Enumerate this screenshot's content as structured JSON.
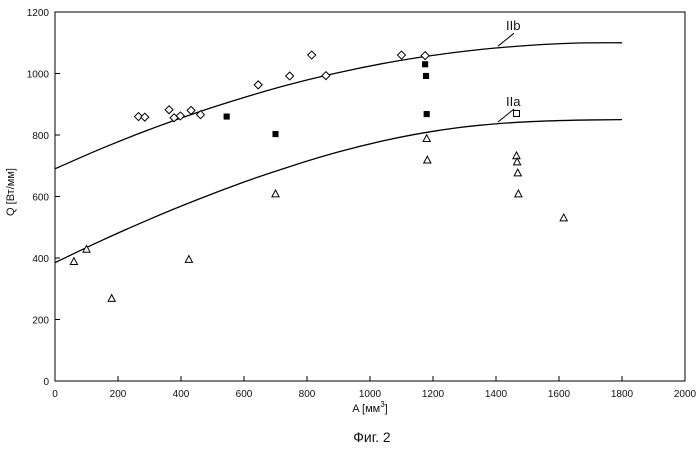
{
  "chart_data": {
    "type": "scatter",
    "title": "",
    "caption": "Фиг. 2",
    "xlabel": "A [мм",
    "xlabel_sup": "3",
    "xlabel_close": "]",
    "ylabel": "Q [Вт/мм]",
    "xlim": [
      0,
      2000
    ],
    "ylim": [
      0,
      1200
    ],
    "x_ticks": [
      0,
      200,
      400,
      600,
      800,
      1000,
      1200,
      1400,
      1600,
      1800,
      2000
    ],
    "y_ticks": [
      0,
      200,
      400,
      600,
      800,
      1000,
      1200
    ],
    "grid": false,
    "curves": [
      {
        "name": "IIb",
        "x": [
          0,
          150,
          300,
          450,
          600,
          750,
          900,
          1050,
          1200,
          1350,
          1500,
          1650,
          1800
        ],
        "y": [
          690,
          757,
          818,
          873,
          922,
          966,
          1003,
          1034,
          1059,
          1078,
          1091,
          1099,
          1100
        ]
      },
      {
        "name": "IIa",
        "x": [
          0,
          150,
          300,
          450,
          600,
          750,
          900,
          1050,
          1200,
          1350,
          1500,
          1650,
          1800
        ],
        "y": [
          385,
          458,
          526,
          589,
          647,
          699,
          745,
          783,
          812,
          832,
          843,
          848,
          850
        ]
      }
    ],
    "series": [
      {
        "marker": "diamond",
        "x": [
          265,
          285,
          362,
          378,
          398,
          432,
          462,
          645,
          745,
          815,
          860,
          1100,
          1175
        ],
        "y": [
          860,
          858,
          882,
          856,
          862,
          880,
          866,
          963,
          992,
          1060,
          993,
          1060,
          1058
        ]
      },
      {
        "marker": "square-filled",
        "x": [
          545,
          700,
          1175,
          1178,
          1180
        ],
        "y": [
          860,
          803,
          1030,
          992,
          868
        ]
      },
      {
        "marker": "square-open",
        "x": [
          1465
        ],
        "y": [
          870
        ]
      },
      {
        "marker": "triangle",
        "x": [
          60,
          100,
          180,
          425,
          700,
          1180,
          1182,
          1465,
          1467,
          1469,
          1471,
          1615
        ],
        "y": [
          388,
          428,
          268,
          395,
          608,
          788,
          718,
          732,
          712,
          676,
          608,
          530
        ]
      }
    ]
  }
}
